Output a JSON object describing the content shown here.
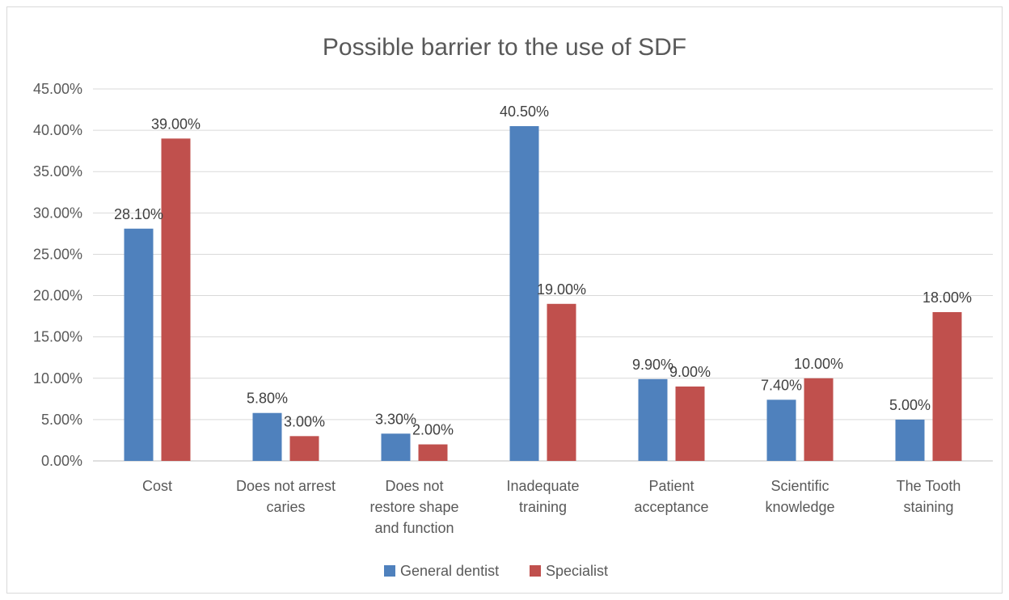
{
  "chart_data": {
    "type": "bar",
    "title": "Possible barrier to the use of SDF",
    "xlabel": "",
    "ylabel": "",
    "ylim": [
      0,
      45
    ],
    "y_tick_step": 5,
    "y_tick_format": "percent_2dp",
    "grid": true,
    "legend_position": "bottom",
    "categories": [
      [
        "Cost"
      ],
      [
        "Does not arrest",
        "caries"
      ],
      [
        "Does not",
        "restore shape",
        "and function"
      ],
      [
        "Inadequate",
        "training"
      ],
      [
        "Patient",
        "acceptance"
      ],
      [
        "Scientific",
        "knowledge"
      ],
      [
        "The Tooth",
        "staining"
      ]
    ],
    "series": [
      {
        "name": "General dentist",
        "color": "#4f81bd",
        "values": [
          28.1,
          5.8,
          3.3,
          40.5,
          9.9,
          7.4,
          5.0
        ],
        "labels": [
          "28.10%",
          "5.80%",
          "3.30%",
          "40.50%",
          "9.90%",
          "7.40%",
          "5.00%"
        ]
      },
      {
        "name": "Specialist",
        "color": "#c0504d",
        "values": [
          39.0,
          3.0,
          2.0,
          19.0,
          9.0,
          10.0,
          18.0
        ],
        "labels": [
          "39.00%",
          "3.00%",
          "2.00%",
          "19.00%",
          "9.00%",
          "10.00%",
          "18.00%"
        ]
      }
    ]
  }
}
